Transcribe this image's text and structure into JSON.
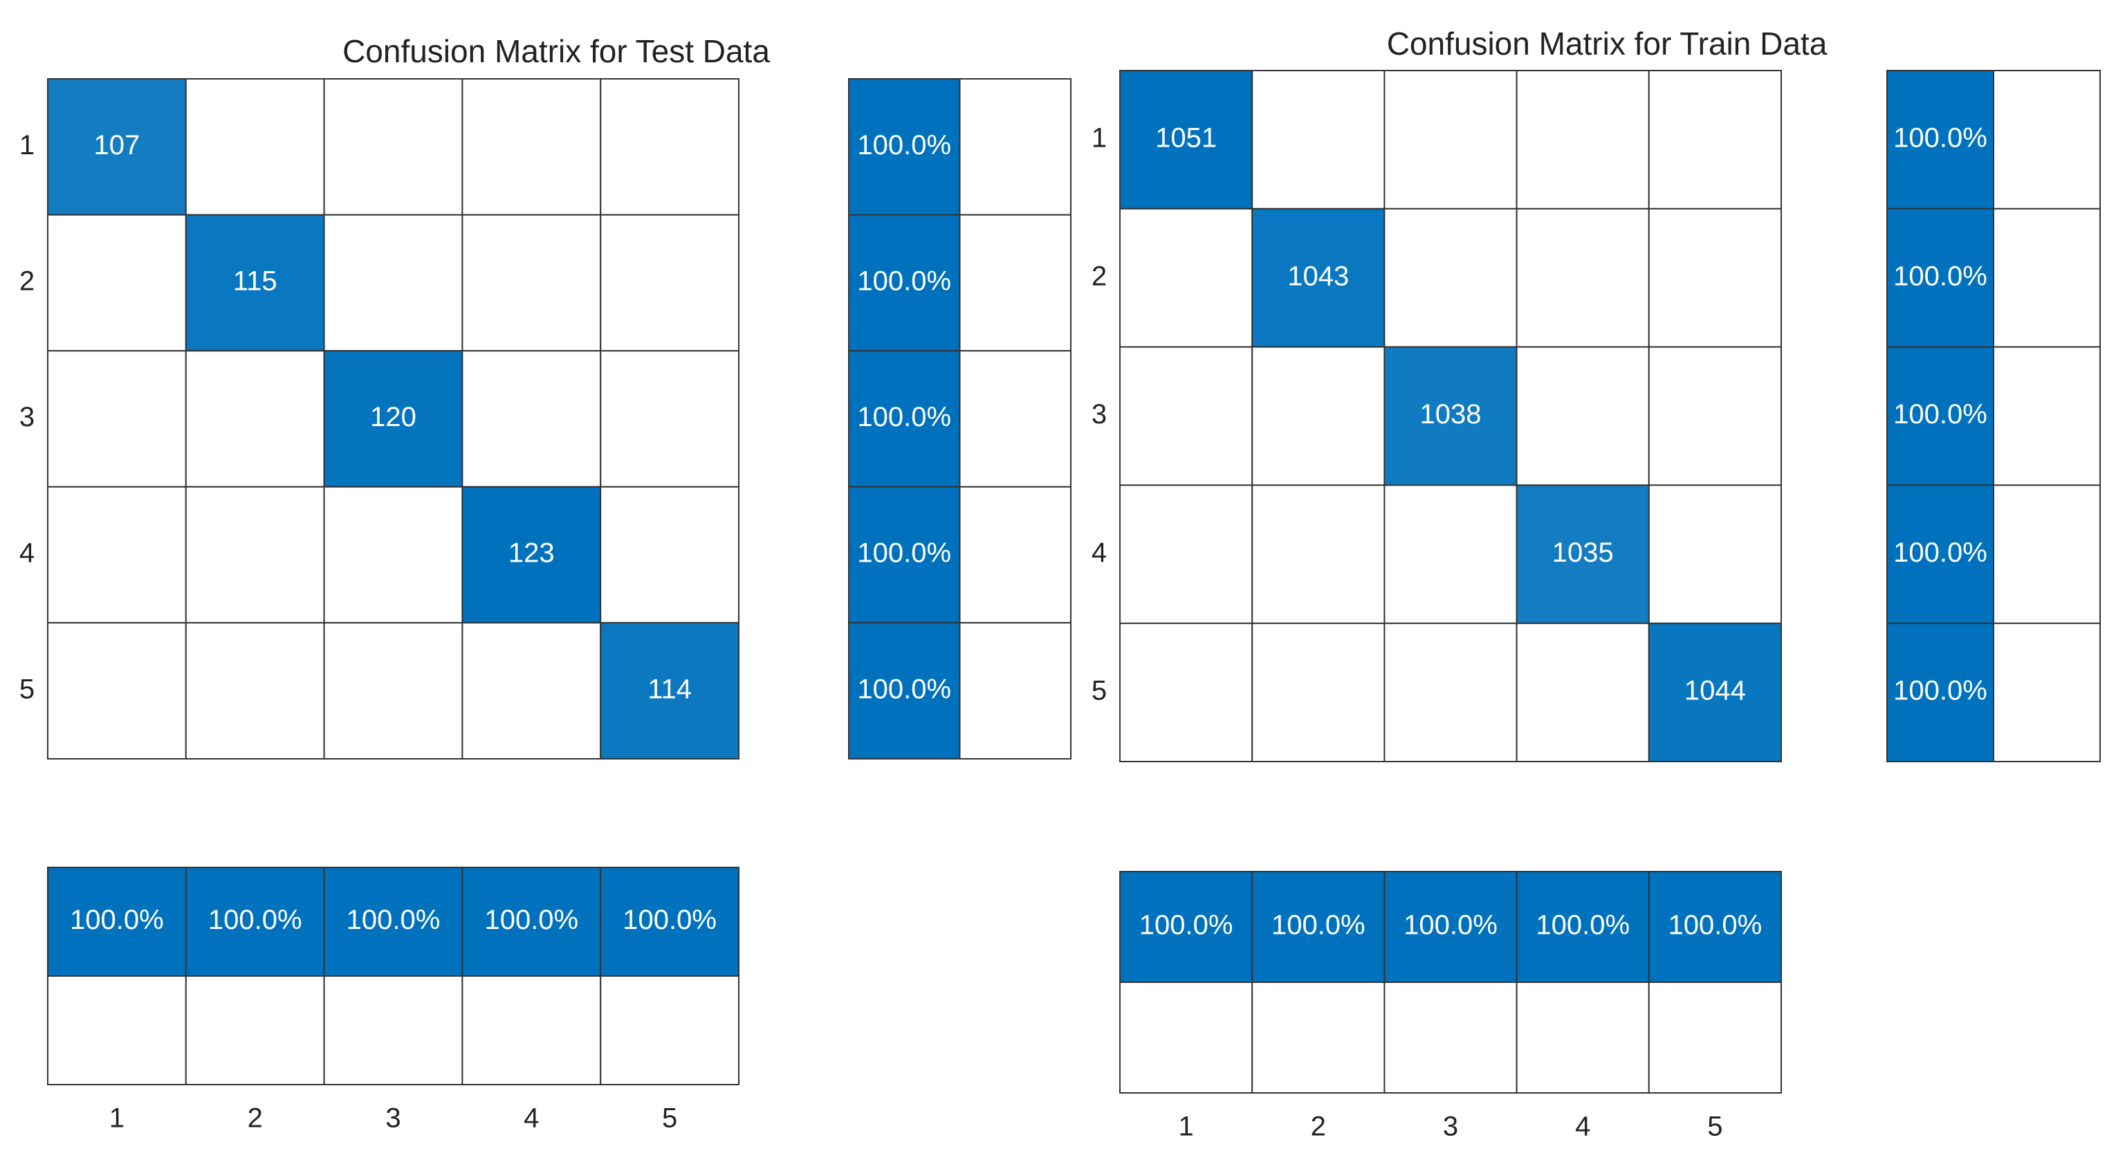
{
  "chart_data": [
    {
      "type": "confusion",
      "title": "Confusion Matrix for Test Data",
      "categories": [
        "1",
        "2",
        "3",
        "4",
        "5"
      ],
      "matrix": [
        [
          107,
          null,
          null,
          null,
          null
        ],
        [
          null,
          115,
          null,
          null,
          null
        ],
        [
          null,
          null,
          120,
          null,
          null
        ],
        [
          null,
          null,
          null,
          123,
          null
        ],
        [
          null,
          null,
          null,
          null,
          114
        ]
      ],
      "row_summary": {
        "values": [
          100,
          100,
          100,
          100,
          100
        ],
        "value_labels": [
          "100.0%",
          "100.0%",
          "100.0%",
          "100.0%",
          "100.0%"
        ]
      },
      "column_summary": {
        "values": [
          100,
          100,
          100,
          100,
          100
        ],
        "value_labels": [
          "100.0%",
          "100.0%",
          "100.0%",
          "100.0%",
          "100.0%"
        ]
      },
      "color": "#0072bd"
    },
    {
      "type": "confusion",
      "title": "Confusion Matrix for Train Data",
      "categories": [
        "1",
        "2",
        "3",
        "4",
        "5"
      ],
      "matrix": [
        [
          1051,
          null,
          null,
          null,
          null
        ],
        [
          null,
          1043,
          null,
          null,
          null
        ],
        [
          null,
          null,
          1038,
          null,
          null
        ],
        [
          null,
          null,
          null,
          1035,
          null
        ],
        [
          null,
          null,
          null,
          null,
          1044
        ]
      ],
      "row_summary": {
        "values": [
          100,
          100,
          100,
          100,
          100
        ],
        "value_labels": [
          "100.0%",
          "100.0%",
          "100.0%",
          "100.0%",
          "100.0%"
        ]
      },
      "column_summary": {
        "values": [
          100,
          100,
          100,
          100,
          100
        ],
        "value_labels": [
          "100.0%",
          "100.0%",
          "100.0%",
          "100.0%",
          "100.0%"
        ]
      },
      "color": "#0072bd"
    }
  ]
}
